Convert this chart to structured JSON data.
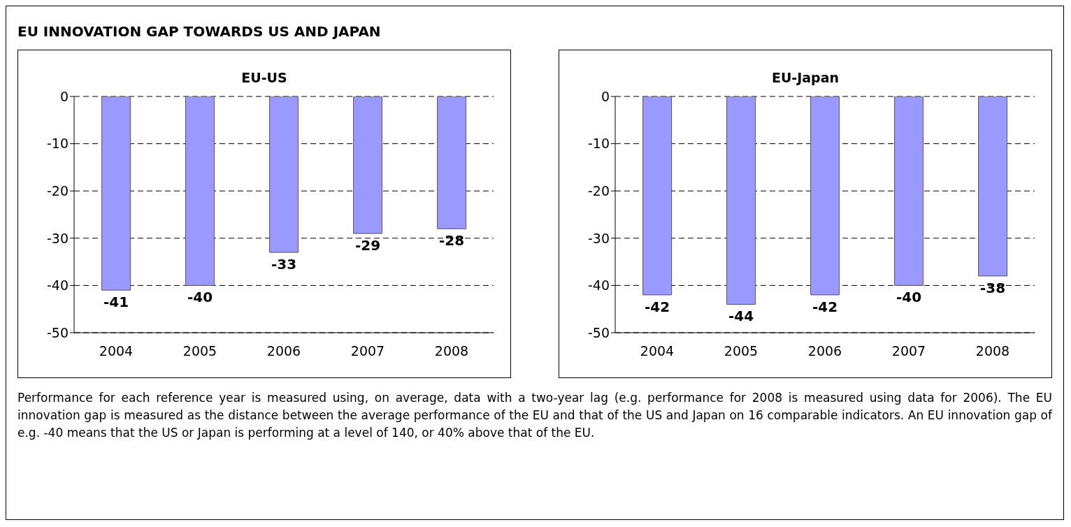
{
  "chart_data": [
    {
      "type": "bar",
      "title": "EU-US",
      "categories": [
        "2004",
        "2005",
        "2006",
        "2007",
        "2008"
      ],
      "values": [
        -41,
        -40,
        -33,
        -29,
        -28
      ],
      "color": "#9999ff",
      "ylim": [
        -50,
        0
      ],
      "yticks": [
        0,
        -10,
        -20,
        -30,
        -40,
        -50
      ],
      "grid": "y",
      "data_labels": true,
      "annotations": [
        "EU INNOVATION GAP TOWARDS US AND JAPAN"
      ]
    },
    {
      "type": "bar",
      "title": "EU-Japan",
      "categories": [
        "2004",
        "2005",
        "2006",
        "2007",
        "2008"
      ],
      "values": [
        -42,
        -44,
        -42,
        -40,
        -38
      ],
      "color": "#9999ff",
      "ylim": [
        -50,
        0
      ],
      "yticks": [
        0,
        -10,
        -20,
        -30,
        -40,
        -50
      ],
      "grid": "y",
      "data_labels": true,
      "annotations": [
        "Performance for each reference year is measured using, on average, data with a two-year lag (e.g. performance for 2008 is measured using data for 2006). The EU innovation gap is measured as the distance between the average performance of the EU and that of the US and Japan on 16 comparable indicators. An EU innovation gap of e.g. -40 means that the US or Japan is performing at a level of 140, or 40% above that of the EU."
      ]
    }
  ]
}
